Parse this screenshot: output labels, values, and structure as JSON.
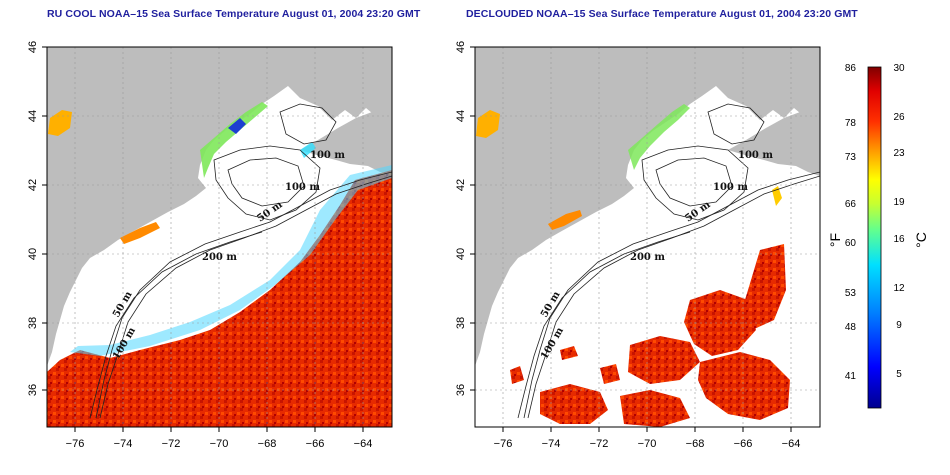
{
  "panels": [
    {
      "id": "left",
      "title": "RU COOL NOAA–15 Sea Surface Temperature August 01, 2004 23:20 GMT",
      "depth_labels": [
        "100 m",
        "100 m",
        "50 m",
        "200 m",
        "50 m",
        "100 m"
      ]
    },
    {
      "id": "right",
      "title": "DECLOUDED NOAA–15 Sea Surface Temperature August 01, 2004 23:20 GMT",
      "depth_labels": [
        "100 m",
        "100 m",
        "50 m",
        "200 m",
        "50 m",
        "100 m"
      ]
    }
  ],
  "axes": {
    "x_ticks": [
      "−76",
      "−74",
      "−72",
      "−70",
      "−68",
      "−66",
      "−64"
    ],
    "y_ticks": [
      "36",
      "38",
      "40",
      "42",
      "44",
      "46"
    ],
    "lon_range": [
      -77,
      -63
    ],
    "lat_range": [
      35,
      46
    ]
  },
  "colorbar": {
    "fahrenheit_ticks": [
      "86",
      "78",
      "73",
      "66",
      "60",
      "53",
      "48",
      "41"
    ],
    "celsius_ticks": [
      "30",
      "26",
      "23",
      "19",
      "16",
      "12",
      "9",
      "5"
    ],
    "fahrenheit_unit": "°F",
    "celsius_unit": "°C",
    "range_c": [
      2,
      30
    ]
  },
  "colors": {
    "land": "#bdbdbd",
    "ocean": "#ffffff",
    "title": "#1f1f9e"
  }
}
